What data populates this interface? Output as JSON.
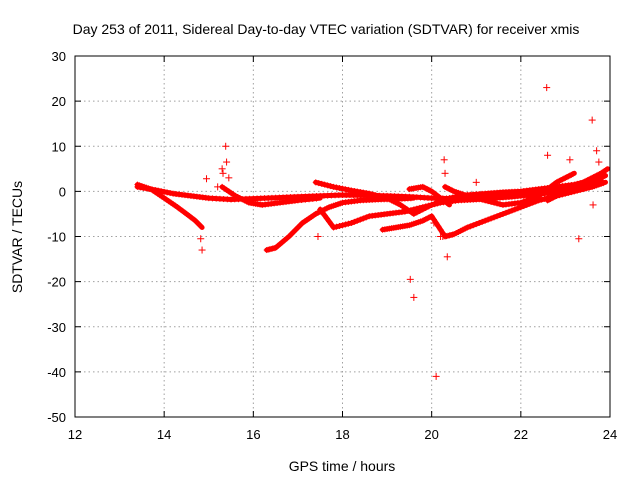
{
  "chart_data": {
    "type": "scatter",
    "title": "Day 253 of 2011, Sidereal Day-to-day VTEC variation (SDTVAR) for receiver xmis",
    "xlabel": "GPS time / hours",
    "ylabel": "SDTVAR / TECUs",
    "xlim": [
      12,
      24
    ],
    "ylim": [
      -50,
      30
    ],
    "xticks": [
      12,
      14,
      16,
      18,
      20,
      22,
      24
    ],
    "yticks": [
      -50,
      -40,
      -30,
      -20,
      -10,
      0,
      10,
      20,
      30
    ],
    "xtick_labels": [
      "12",
      "14",
      "16",
      "18",
      "20",
      "22",
      "24"
    ],
    "ytick_labels": [
      "-50",
      "-40",
      "-30",
      "-20",
      "-10",
      "0",
      "10",
      "20",
      "30"
    ],
    "grid": true,
    "marker": "+",
    "color": "#ff0000",
    "tracks": [
      {
        "name": "track-a",
        "x": [
          13.4,
          13.7,
          14.0,
          14.3,
          14.5,
          14.7,
          14.85
        ],
        "y": [
          1.5,
          0.5,
          -1.5,
          -3.5,
          -5.0,
          -6.5,
          -8.0
        ]
      },
      {
        "name": "track-b",
        "x": [
          13.4,
          13.8,
          14.2,
          14.6,
          15.0,
          15.5,
          16.0,
          16.5,
          17.0,
          17.5,
          18.0,
          18.5,
          19.0,
          19.5,
          20.0,
          20.5,
          21.0,
          21.5,
          22.0,
          22.5,
          23.0,
          23.5,
          23.9
        ],
        "y": [
          1.0,
          0.3,
          -0.5,
          -1.0,
          -1.5,
          -1.8,
          -1.6,
          -1.4,
          -1.2,
          -1.0,
          -0.8,
          -0.9,
          -1.0,
          -1.2,
          -1.5,
          -1.6,
          -1.4,
          -1.2,
          -0.8,
          -0.3,
          0.5,
          1.5,
          3.5
        ]
      },
      {
        "name": "track-c",
        "x": [
          15.3,
          15.6,
          15.9,
          16.2,
          16.6,
          17.0,
          17.5
        ],
        "y": [
          1.0,
          -1.0,
          -2.5,
          -3.0,
          -2.5,
          -2.0,
          -1.5
        ]
      },
      {
        "name": "track-d",
        "x": [
          16.3,
          16.5,
          16.8,
          17.1,
          17.4,
          17.7,
          18.0,
          18.4,
          18.8,
          19.2,
          19.6
        ],
        "y": [
          -13.0,
          -12.5,
          -10.0,
          -7.0,
          -5.0,
          -3.5,
          -2.5,
          -2.0,
          -1.8,
          -1.7,
          -1.5
        ]
      },
      {
        "name": "track-e",
        "x": [
          17.5,
          17.8,
          18.2,
          18.6,
          19.0,
          19.4,
          19.8,
          20.2,
          20.6,
          21.0,
          21.4,
          21.8,
          22.2,
          22.6,
          23.0,
          23.4,
          23.8
        ],
        "y": [
          -4.0,
          -8.0,
          -7.0,
          -5.5,
          -5.0,
          -4.5,
          -3.5,
          -2.5,
          -2.0,
          -1.8,
          -1.5,
          -1.2,
          -0.8,
          -0.4,
          0.2,
          1.0,
          2.5
        ]
      },
      {
        "name": "track-f",
        "x": [
          17.4,
          17.8,
          18.2,
          18.6,
          19.0,
          19.3,
          19.6,
          20.0,
          20.4,
          20.8,
          21.2,
          21.6,
          22.0,
          22.4,
          22.8,
          23.2,
          23.6,
          23.9
        ],
        "y": [
          2.0,
          1.0,
          0.2,
          -0.5,
          -1.5,
          -3.0,
          -5.0,
          -3.0,
          -1.5,
          -0.8,
          -0.5,
          -0.2,
          0.0,
          0.5,
          1.0,
          1.5,
          2.5,
          3.5
        ]
      },
      {
        "name": "track-g",
        "x": [
          18.9,
          19.2,
          19.5,
          19.8,
          20.0,
          20.3,
          20.5,
          20.8,
          21.2,
          21.6,
          22.0,
          22.4,
          22.8,
          23.2,
          23.6,
          23.9
        ],
        "y": [
          -8.5,
          -8.0,
          -7.5,
          -6.5,
          -5.5,
          -10.0,
          -9.5,
          -8.0,
          -6.5,
          -5.0,
          -3.5,
          -2.0,
          -1.0,
          0.0,
          1.0,
          2.0
        ]
      },
      {
        "name": "track-h",
        "x": [
          19.5,
          19.8,
          20.0,
          20.2,
          20.4
        ],
        "y": [
          0.5,
          1.0,
          0.0,
          -1.5,
          -3.0
        ]
      },
      {
        "name": "track-i",
        "x": [
          20.3,
          20.5,
          20.8,
          21.2,
          21.6,
          22.0,
          22.4,
          22.6,
          22.8,
          23.0,
          23.2
        ],
        "y": [
          1.0,
          0.0,
          -1.0,
          -2.0,
          -3.0,
          -2.5,
          -1.0,
          0.5,
          2.0,
          3.0,
          4.0
        ]
      },
      {
        "name": "track-j",
        "x": [
          22.6,
          22.8,
          23.0,
          23.2,
          23.4,
          23.6,
          23.8,
          23.95
        ],
        "y": [
          -2.0,
          -1.0,
          0.0,
          1.0,
          2.0,
          3.0,
          4.0,
          5.0
        ]
      }
    ],
    "outliers": {
      "x": [
        14.82,
        14.85,
        14.95,
        15.3,
        15.32,
        15.38,
        15.4,
        15.45,
        15.2,
        17.45,
        19.52,
        19.6,
        20.05,
        20.1,
        20.2,
        20.25,
        20.28,
        20.3,
        20.35,
        21.0,
        22.58,
        22.6,
        23.1,
        23.3,
        23.6,
        23.62,
        23.7,
        23.75
      ],
      "y": [
        -10.5,
        -13.0,
        2.8,
        5.0,
        4.0,
        10.0,
        6.5,
        3.0,
        1.0,
        -10.0,
        -19.5,
        -23.5,
        -7.0,
        -41.0,
        -10.0,
        -10.0,
        7.0,
        4.0,
        -14.5,
        2.0,
        23.0,
        8.0,
        7.0,
        -10.5,
        15.8,
        -3.0,
        9.0,
        6.5
      ]
    }
  }
}
